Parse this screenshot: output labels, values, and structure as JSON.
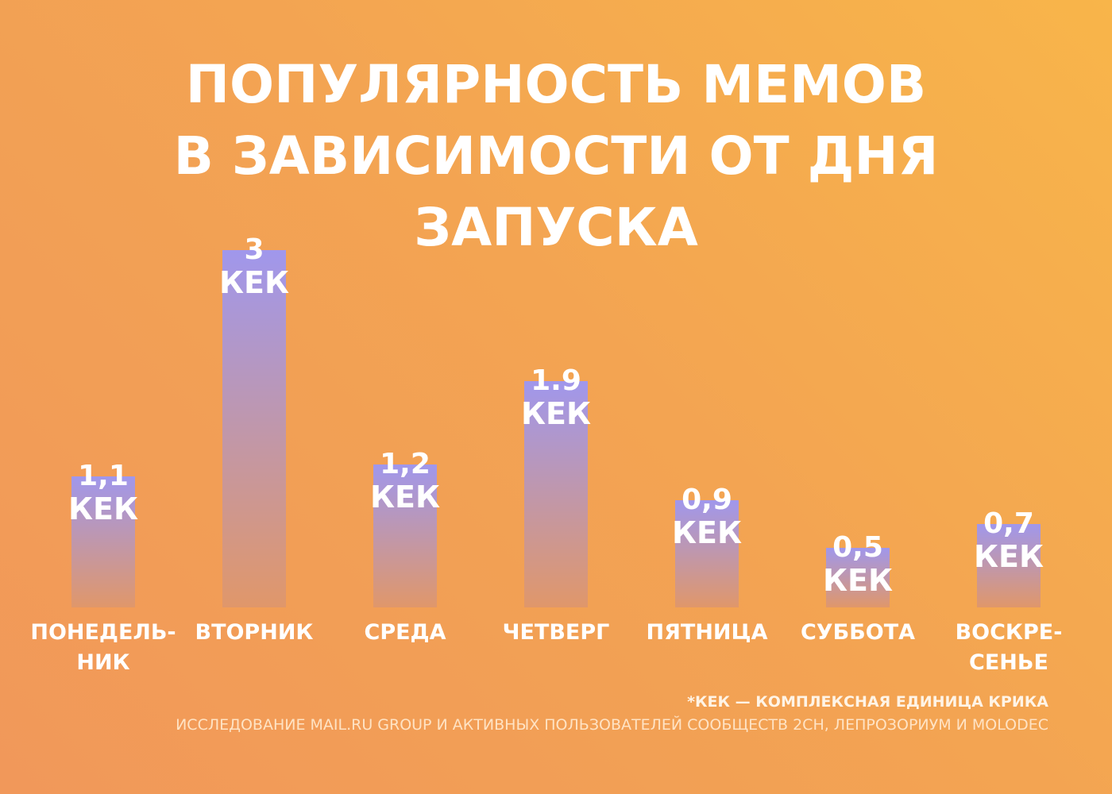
{
  "title_lines": [
    "ПОПУЛЯРНОСТЬ МЕМОВ",
    "В ЗАВИСИМОСТИ ОТ ДНЯ",
    "ЗАПУСКА"
  ],
  "footnote": "*КЕК — КОМПЛЕКСНАЯ ЕДИНИЦА КРИКА",
  "source": "ИССЛЕДОВАНИЕ MAIL.RU GROUP И АКТИВНЫХ ПОЛЬЗОВАТЕЛЕЙ СООБЩЕСТВ 2CH, ЛЕПРОЗОРИУМ И MOLODEC",
  "colors": {
    "bar_top": "#a097ec",
    "bar_bottom": "#e0976a"
  },
  "chart_data": {
    "type": "bar",
    "categories": [
      "ПОНЕДЕЛЬНИК",
      "ВТОРНИК",
      "СРЕДА",
      "ЧЕТВЕРГ",
      "ПЯТНИЦА",
      "СУББОТА",
      "ВОСКРЕСЕНЬЕ"
    ],
    "category_label_lines": [
      [
        "ПОНЕДЕЛЬ-",
        "НИК"
      ],
      [
        "ВТОРНИК"
      ],
      [
        "СРЕДА"
      ],
      [
        "ЧЕТВЕРГ"
      ],
      [
        "ПЯТНИЦА"
      ],
      [
        "СУББОТА"
      ],
      [
        "ВОСКРЕ-",
        "СЕНЬЕ"
      ]
    ],
    "values": [
      1.1,
      3,
      1.2,
      1.9,
      0.9,
      0.5,
      0.7
    ],
    "value_labels": [
      "1,1",
      "3",
      "1,2",
      "1.9",
      "0,9",
      "0,5",
      "0,7"
    ],
    "unit": "КЕК",
    "title": "ПОПУЛЯРНОСТЬ МЕМОВ В ЗАВИСИМОСТИ ОТ ДНЯ ЗАПУСКА",
    "xlabel": "",
    "ylabel": "",
    "ylim": [
      0,
      3
    ],
    "grid": false,
    "legend": "none"
  }
}
